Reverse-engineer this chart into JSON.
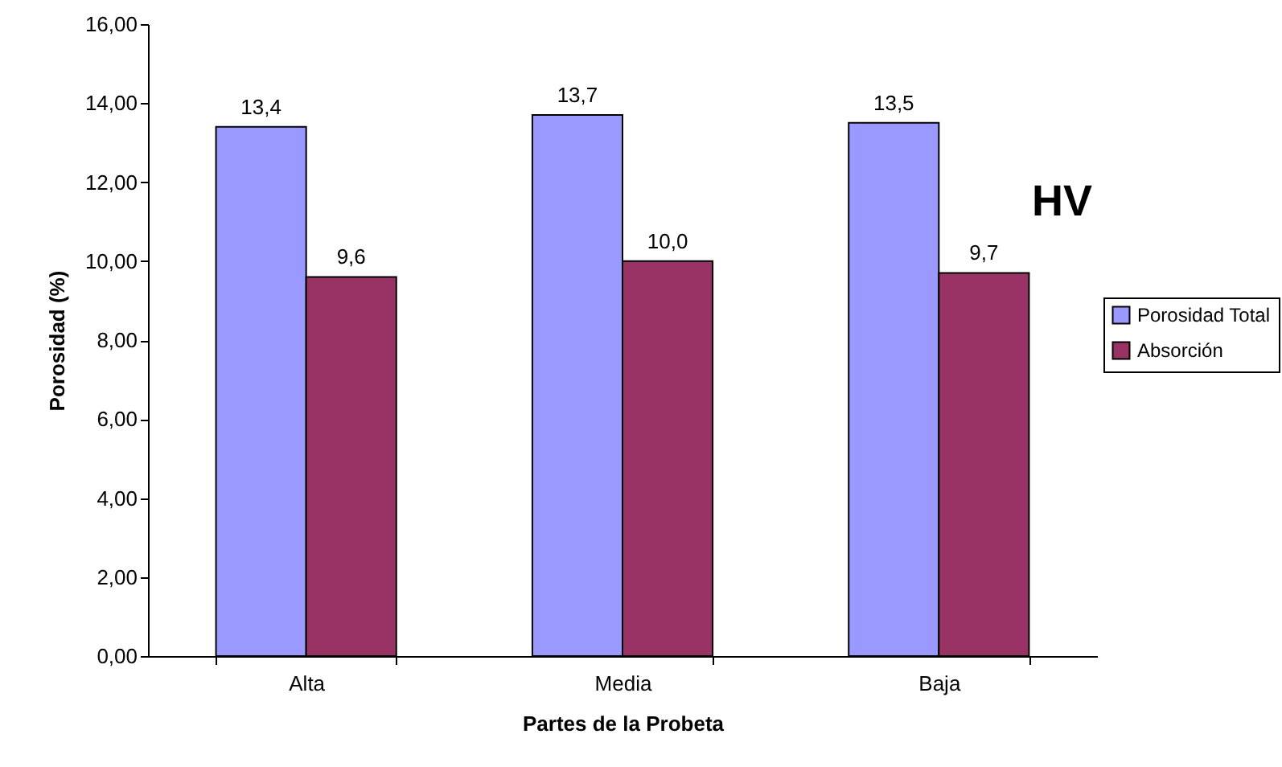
{
  "chart_data": {
    "type": "bar",
    "title": "HV",
    "xlabel": "Partes de la Probeta",
    "ylabel": "Porosidad (%)",
    "categories": [
      "Alta",
      "Media",
      "Baja"
    ],
    "series": [
      {
        "name": "Porosidad Total",
        "color": "#9999ff",
        "values": [
          13.4,
          13.7,
          13.5
        ],
        "value_labels": [
          "13,4",
          "13,7",
          "13,5"
        ]
      },
      {
        "name": "Absorción",
        "color": "#993366",
        "values": [
          9.6,
          10.0,
          9.7
        ],
        "value_labels": [
          "9,6",
          "10,0",
          "9,7"
        ]
      }
    ],
    "ylim": [
      0,
      16
    ],
    "yticks": [
      {
        "value": 0,
        "label": "0,00"
      },
      {
        "value": 2,
        "label": "2,00"
      },
      {
        "value": 4,
        "label": "4,00"
      },
      {
        "value": 6,
        "label": "6,00"
      },
      {
        "value": 8,
        "label": "8,00"
      },
      {
        "value": 10,
        "label": "10,00"
      },
      {
        "value": 12,
        "label": "12,00"
      },
      {
        "value": 14,
        "label": "14,00"
      },
      {
        "value": 16,
        "label": "16,00"
      }
    ],
    "legend": "right"
  }
}
